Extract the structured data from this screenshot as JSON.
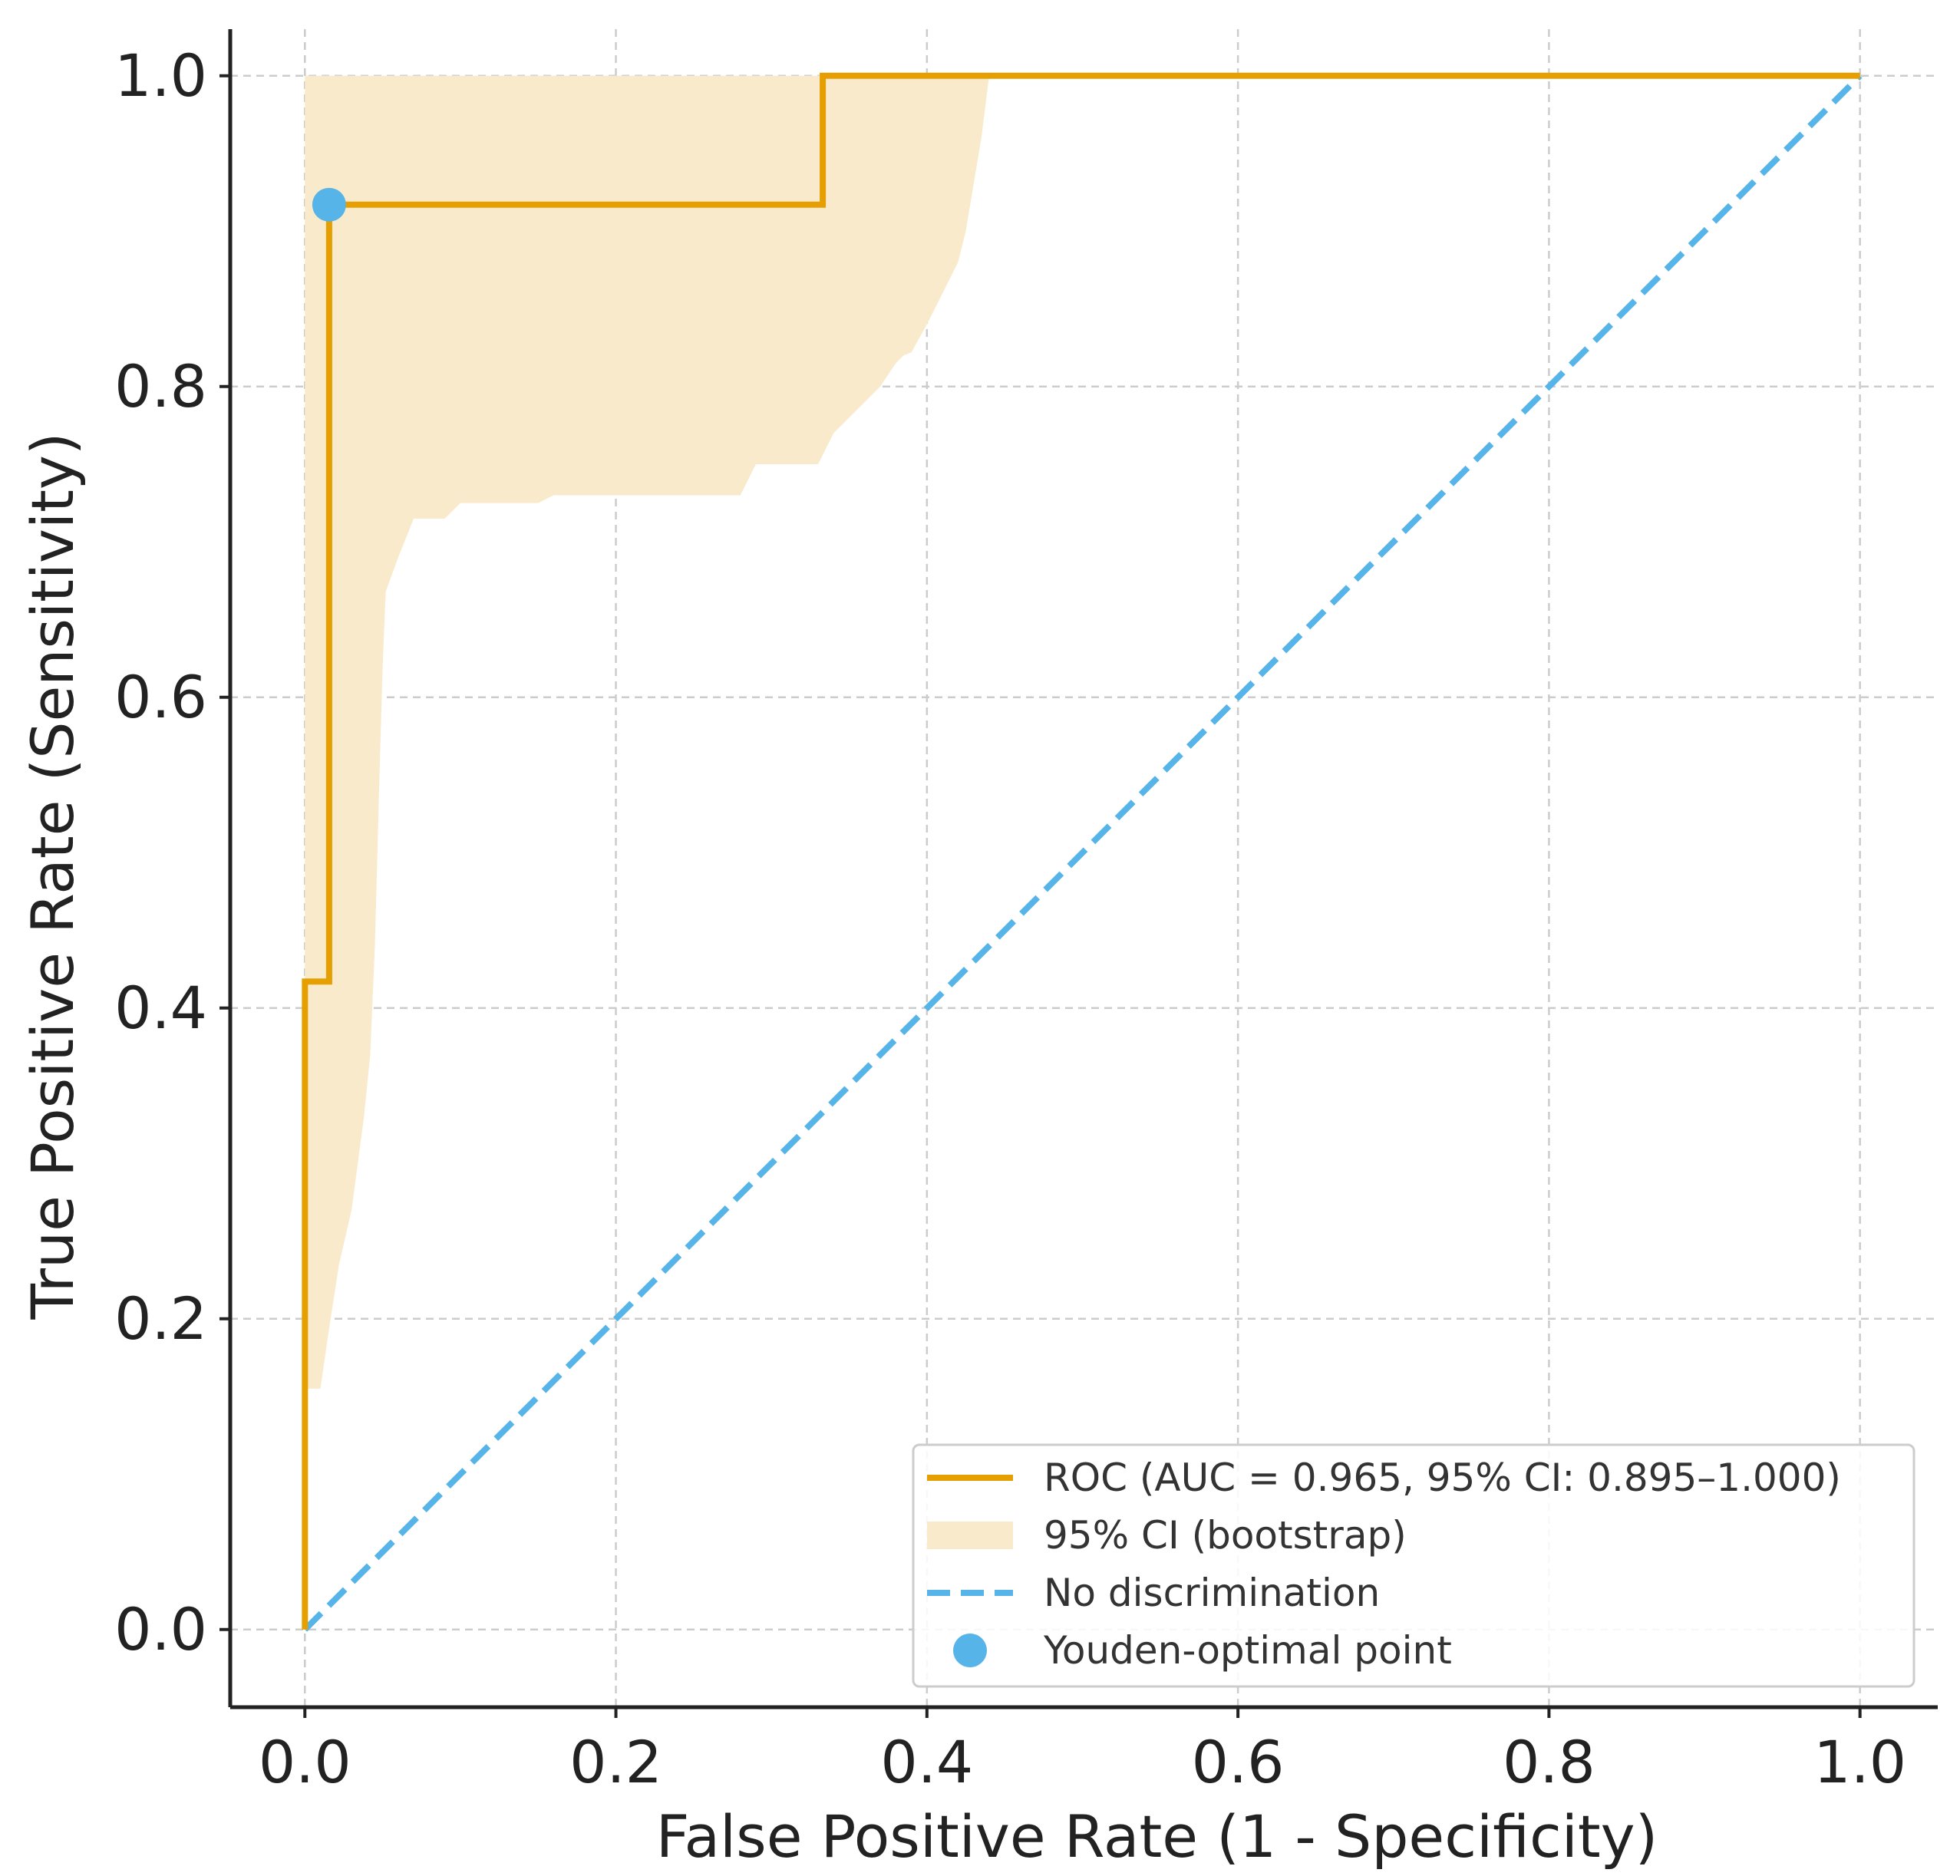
{
  "chart_data": {
    "type": "line",
    "title": "",
    "xlabel": "False Positive Rate (1 - Specificity)",
    "ylabel": "True Positive Rate (Sensitivity)",
    "xlim": [
      -0.048,
      1.05
    ],
    "ylim": [
      -0.05,
      1.03
    ],
    "x_ticks": [
      0.0,
      0.2,
      0.4,
      0.6,
      0.8,
      1.0
    ],
    "y_ticks": [
      0.0,
      0.2,
      0.4,
      0.6,
      0.8,
      1.0
    ],
    "x_tick_labels": [
      "0.0",
      "0.2",
      "0.4",
      "0.6",
      "0.8",
      "1.0"
    ],
    "y_tick_labels": [
      "0.0",
      "0.2",
      "0.4",
      "0.6",
      "0.8",
      "1.0"
    ],
    "grid": true,
    "legend_position": "lower-right",
    "series": [
      {
        "name": "ROC (AUC = 0.965, 95% CI: 0.895–1.000)",
        "kind": "step-line",
        "color": "#E69F00",
        "x": [
          0.0,
          0.0,
          0.0156,
          0.0156,
          0.333,
          0.333,
          1.0
        ],
        "y": [
          0.0,
          0.417,
          0.417,
          0.917,
          0.917,
          1.0,
          1.0
        ]
      },
      {
        "name": "95% CI (bootstrap)",
        "kind": "band",
        "color": "#F9EACB",
        "x": [
          0.0,
          0.005,
          0.01,
          0.015,
          0.022,
          0.03,
          0.038,
          0.042,
          0.045,
          0.048,
          0.05,
          0.052,
          0.06,
          0.07,
          0.09,
          0.1,
          0.12,
          0.15,
          0.16,
          0.2,
          0.25,
          0.28,
          0.29,
          0.3,
          0.33,
          0.34,
          0.35,
          0.36,
          0.37,
          0.38,
          0.385,
          0.39,
          0.4,
          0.405,
          0.41,
          0.42,
          0.425,
          0.43,
          0.435,
          0.44
        ],
        "lower": [
          0.155,
          0.155,
          0.155,
          0.19,
          0.235,
          0.27,
          0.33,
          0.37,
          0.44,
          0.55,
          0.62,
          0.668,
          0.69,
          0.715,
          0.715,
          0.725,
          0.725,
          0.725,
          0.73,
          0.73,
          0.73,
          0.73,
          0.75,
          0.75,
          0.75,
          0.77,
          0.78,
          0.79,
          0.8,
          0.815,
          0.82,
          0.822,
          0.84,
          0.85,
          0.86,
          0.88,
          0.9,
          0.93,
          0.96,
          1.0
        ],
        "upper": [
          1.0,
          1.0,
          1.0,
          1.0,
          1.0,
          1.0,
          1.0,
          1.0,
          1.0,
          1.0,
          1.0,
          1.0,
          1.0,
          1.0,
          1.0,
          1.0,
          1.0,
          1.0,
          1.0,
          1.0,
          1.0,
          1.0,
          1.0,
          1.0,
          1.0,
          1.0,
          1.0,
          1.0,
          1.0,
          1.0,
          1.0,
          1.0,
          1.0,
          1.0,
          1.0,
          1.0,
          1.0,
          1.0,
          1.0,
          1.0
        ]
      },
      {
        "name": "No discrimination",
        "kind": "dashed-line",
        "color": "#56B4E9",
        "x": [
          0.0,
          1.0
        ],
        "y": [
          0.0,
          1.0
        ]
      },
      {
        "name": "Youden-optimal point",
        "kind": "marker",
        "color": "#56B4E9",
        "x": [
          0.0156
        ],
        "y": [
          0.917
        ]
      }
    ],
    "legend": [
      "ROC (AUC = 0.965, 95% CI: 0.895–1.000)",
      "95% CI (bootstrap)",
      "No discrimination",
      "Youden-optimal point"
    ]
  }
}
